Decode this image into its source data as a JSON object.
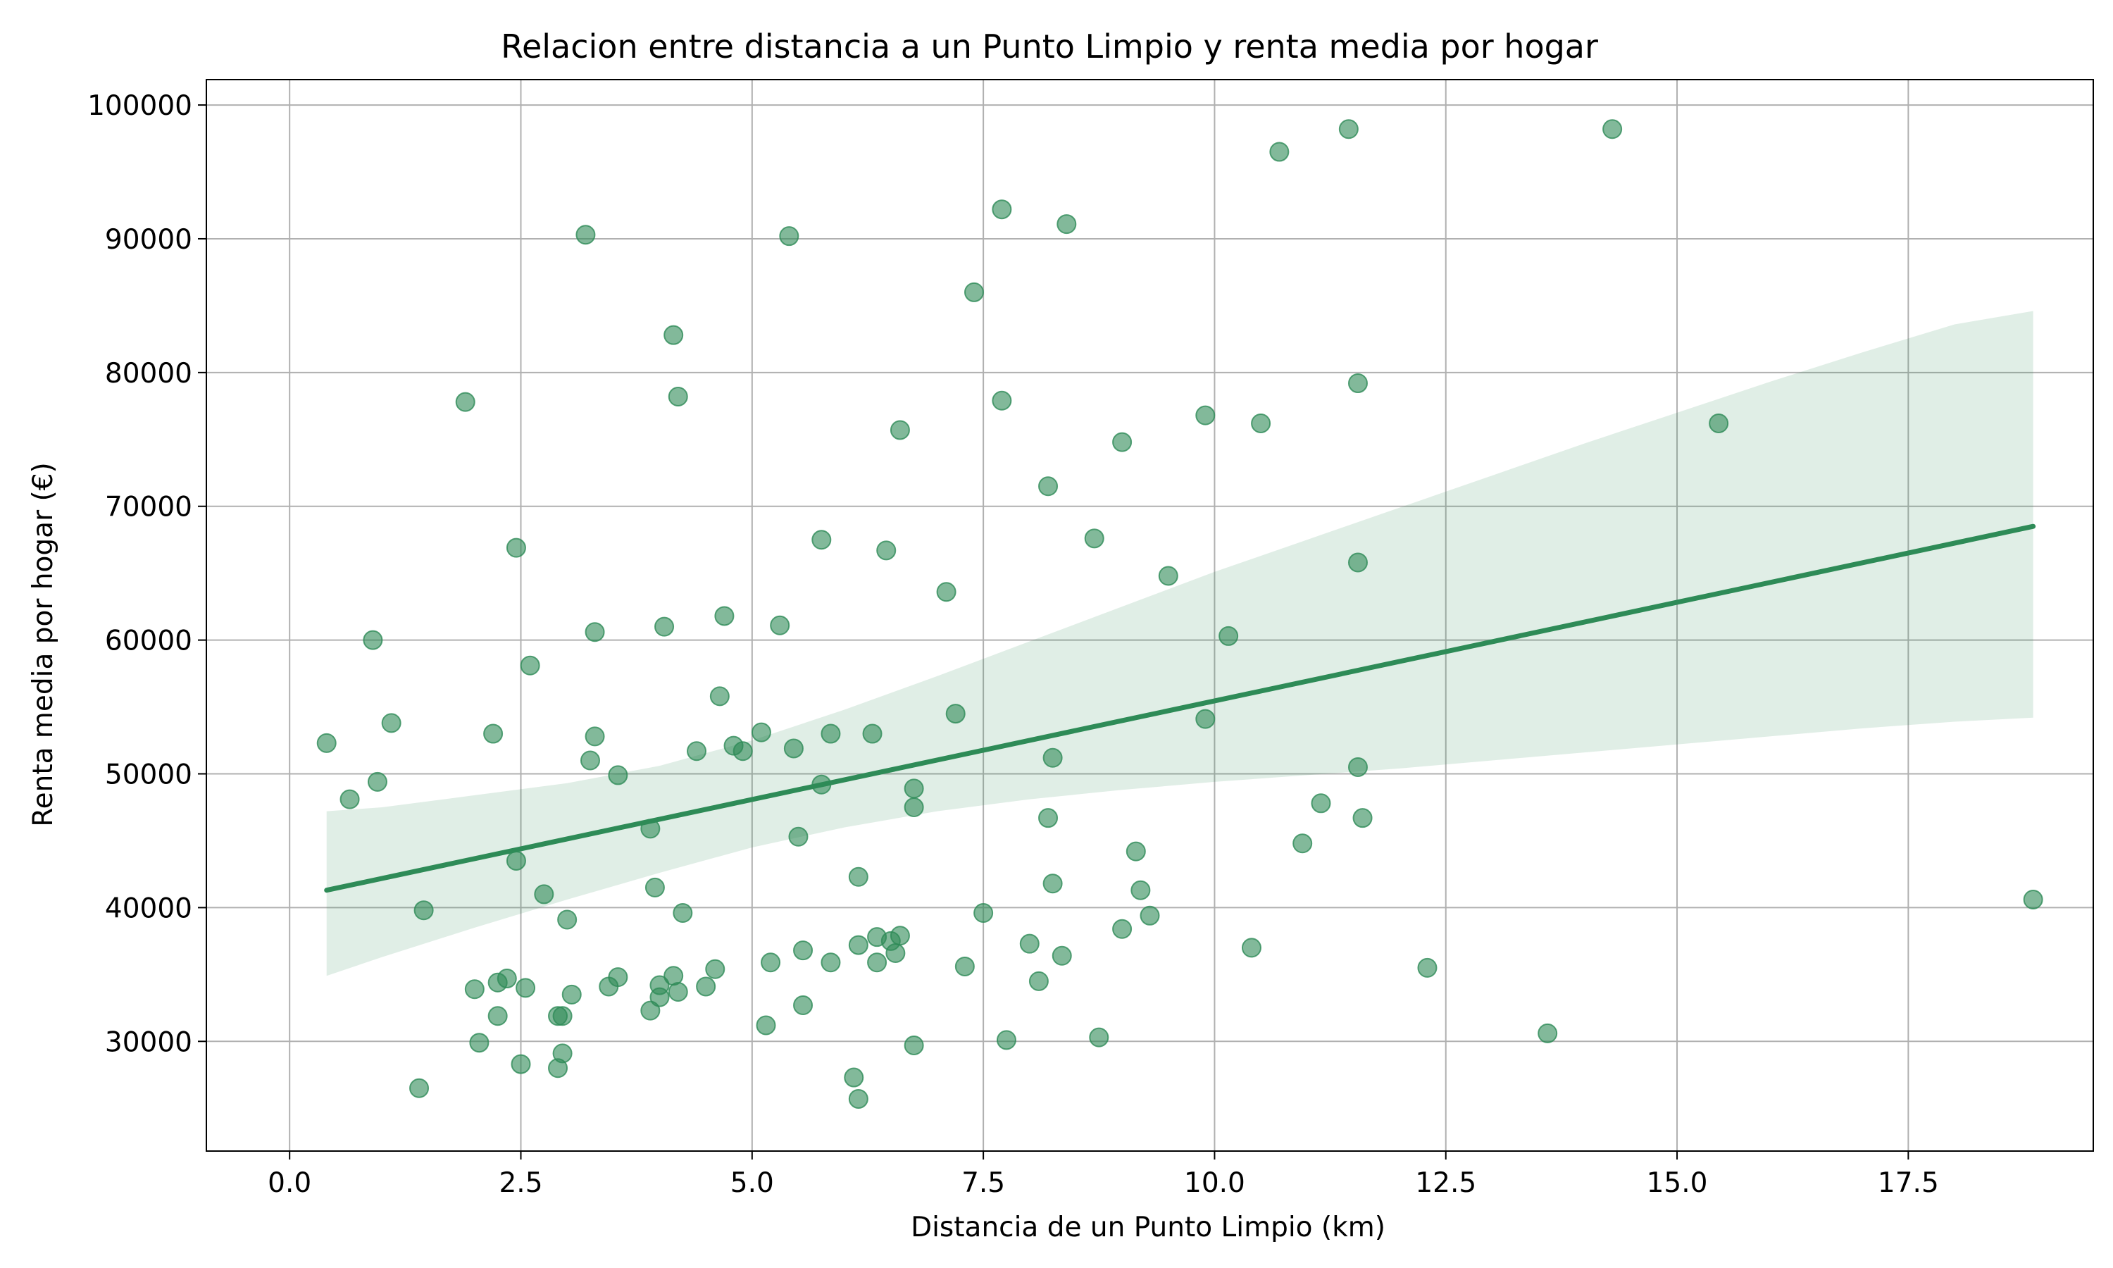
{
  "chart_data": {
    "type": "scatter",
    "title": "Relacion entre distancia a un Punto Limpio y renta media por hogar",
    "xlabel": "Distancia de un Punto Limpio (km)",
    "ylabel": "Renta media por hogar (€)",
    "xlim": [
      -0.9,
      19.5
    ],
    "ylim": [
      21800,
      101900
    ],
    "xticks": [
      0.0,
      2.5,
      5.0,
      7.5,
      10.0,
      12.5,
      15.0,
      17.5
    ],
    "xtick_labels": [
      "0.0",
      "2.5",
      "5.0",
      "7.5",
      "10.0",
      "12.5",
      "15.0",
      "17.5"
    ],
    "yticks": [
      30000,
      40000,
      50000,
      60000,
      70000,
      80000,
      90000,
      100000
    ],
    "ytick_labels": [
      "30000",
      "40000",
      "50000",
      "60000",
      "70000",
      "80000",
      "90000",
      "100000"
    ],
    "grid": true,
    "colors": {
      "points": "#2e8b57",
      "line": "#2e8b57",
      "band": "#2e8b57"
    },
    "series": [
      {
        "kind": "points",
        "points": [
          [
            0.4,
            52300
          ],
          [
            0.65,
            48100
          ],
          [
            0.9,
            60000
          ],
          [
            0.95,
            49400
          ],
          [
            1.1,
            53800
          ],
          [
            1.4,
            26500
          ],
          [
            1.45,
            39800
          ],
          [
            1.9,
            77800
          ],
          [
            2.0,
            33900
          ],
          [
            2.05,
            29900
          ],
          [
            2.2,
            53000
          ],
          [
            2.25,
            31900
          ],
          [
            2.25,
            34400
          ],
          [
            2.35,
            34700
          ],
          [
            2.45,
            43500
          ],
          [
            2.45,
            66900
          ],
          [
            2.5,
            28300
          ],
          [
            2.55,
            34000
          ],
          [
            2.6,
            58100
          ],
          [
            2.75,
            41000
          ],
          [
            2.9,
            31900
          ],
          [
            2.9,
            28000
          ],
          [
            2.95,
            29100
          ],
          [
            2.95,
            31900
          ],
          [
            3.0,
            39100
          ],
          [
            3.05,
            33500
          ],
          [
            3.2,
            90300
          ],
          [
            3.25,
            51000
          ],
          [
            3.3,
            52800
          ],
          [
            3.3,
            60600
          ],
          [
            3.45,
            34100
          ],
          [
            3.55,
            34800
          ],
          [
            3.55,
            49900
          ],
          [
            3.9,
            45900
          ],
          [
            3.9,
            32300
          ],
          [
            3.95,
            41500
          ],
          [
            4.0,
            33300
          ],
          [
            4.0,
            34200
          ],
          [
            4.05,
            61000
          ],
          [
            4.15,
            82800
          ],
          [
            4.15,
            34900
          ],
          [
            4.2,
            78200
          ],
          [
            4.2,
            33700
          ],
          [
            4.25,
            39600
          ],
          [
            4.4,
            51700
          ],
          [
            4.5,
            34100
          ],
          [
            4.6,
            35400
          ],
          [
            4.65,
            55800
          ],
          [
            4.7,
            61800
          ],
          [
            4.8,
            52100
          ],
          [
            4.9,
            51700
          ],
          [
            5.1,
            53100
          ],
          [
            5.15,
            31200
          ],
          [
            5.2,
            35900
          ],
          [
            5.3,
            61100
          ],
          [
            5.4,
            90200
          ],
          [
            5.45,
            51900
          ],
          [
            5.5,
            45300
          ],
          [
            5.55,
            36800
          ],
          [
            5.55,
            32700
          ],
          [
            5.75,
            67500
          ],
          [
            5.75,
            49200
          ],
          [
            5.85,
            53000
          ],
          [
            5.85,
            35900
          ],
          [
            6.1,
            27300
          ],
          [
            6.15,
            25700
          ],
          [
            6.15,
            37200
          ],
          [
            6.15,
            42300
          ],
          [
            6.3,
            53000
          ],
          [
            6.35,
            37800
          ],
          [
            6.35,
            35900
          ],
          [
            6.45,
            66700
          ],
          [
            6.5,
            37500
          ],
          [
            6.55,
            36600
          ],
          [
            6.6,
            37900
          ],
          [
            6.6,
            75700
          ],
          [
            6.75,
            48900
          ],
          [
            6.75,
            47500
          ],
          [
            6.75,
            29700
          ],
          [
            7.1,
            63600
          ],
          [
            7.2,
            54500
          ],
          [
            7.3,
            35600
          ],
          [
            7.4,
            86000
          ],
          [
            7.5,
            39600
          ],
          [
            7.7,
            92200
          ],
          [
            7.7,
            77900
          ],
          [
            7.75,
            30100
          ],
          [
            8.0,
            37300
          ],
          [
            8.1,
            34500
          ],
          [
            8.2,
            71500
          ],
          [
            8.2,
            46700
          ],
          [
            8.25,
            51200
          ],
          [
            8.25,
            41800
          ],
          [
            8.35,
            36400
          ],
          [
            8.4,
            91100
          ],
          [
            8.7,
            67600
          ],
          [
            8.75,
            30300
          ],
          [
            9.0,
            38400
          ],
          [
            9.0,
            74800
          ],
          [
            9.15,
            44200
          ],
          [
            9.2,
            41300
          ],
          [
            9.3,
            39400
          ],
          [
            9.5,
            64800
          ],
          [
            9.9,
            76800
          ],
          [
            9.9,
            54100
          ],
          [
            10.15,
            60300
          ],
          [
            10.4,
            37000
          ],
          [
            10.5,
            76200
          ],
          [
            10.7,
            96500
          ],
          [
            10.95,
            44800
          ],
          [
            11.15,
            47800
          ],
          [
            11.45,
            98200
          ],
          [
            11.55,
            65800
          ],
          [
            11.55,
            79200
          ],
          [
            11.55,
            50500
          ],
          [
            11.6,
            46700
          ],
          [
            12.3,
            35500
          ],
          [
            13.6,
            30600
          ],
          [
            14.3,
            98200
          ],
          [
            15.45,
            76200
          ],
          [
            18.85,
            40600
          ]
        ]
      },
      {
        "kind": "regression-line",
        "x": [
          0.4,
          18.85
        ],
        "y": [
          41300,
          68500
        ]
      },
      {
        "kind": "confidence-band",
        "x": [
          0.4,
          1.0,
          2.0,
          3.0,
          4.0,
          5.0,
          6.0,
          7.0,
          8.0,
          9.0,
          10.0,
          11.0,
          12.0,
          13.0,
          14.0,
          15.0,
          16.0,
          17.0,
          18.0,
          18.85
        ],
        "lower": [
          34900,
          36300,
          38500,
          40600,
          42600,
          44500,
          46000,
          47200,
          48100,
          48800,
          49400,
          49900,
          50400,
          51000,
          51600,
          52200,
          52800,
          53400,
          53900,
          54200
        ],
        "upper": [
          47200,
          47500,
          48400,
          49300,
          50600,
          52500,
          54800,
          57300,
          59900,
          62500,
          65100,
          67500,
          69900,
          72300,
          74700,
          77000,
          79300,
          81500,
          83600,
          84600
        ]
      }
    ]
  }
}
